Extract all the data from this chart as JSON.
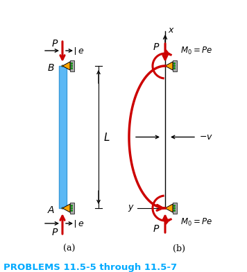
{
  "title": "PROBLEMS 11.5-5 through 11.5-7",
  "title_color": "#00AAFF",
  "bg_color": "#FFFFFF",
  "col_color": "#5BB8F5",
  "pin_color": "#FFA500",
  "wall_color": "#AAAAAA",
  "green_dot_color": "#00BB00",
  "red_arrow_color": "#CC0000",
  "black_color": "#000000"
}
